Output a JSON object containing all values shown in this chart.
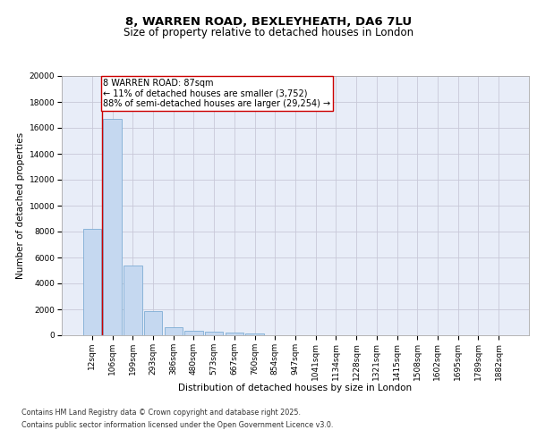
{
  "title_line1": "8, WARREN ROAD, BEXLEYHEATH, DA6 7LU",
  "title_line2": "Size of property relative to detached houses in London",
  "xlabel": "Distribution of detached houses by size in London",
  "ylabel": "Number of detached properties",
  "categories": [
    "12sqm",
    "106sqm",
    "199sqm",
    "293sqm",
    "386sqm",
    "480sqm",
    "573sqm",
    "667sqm",
    "760sqm",
    "854sqm",
    "947sqm",
    "1041sqm",
    "1134sqm",
    "1228sqm",
    "1321sqm",
    "1415sqm",
    "1508sqm",
    "1602sqm",
    "1695sqm",
    "1789sqm",
    "1882sqm"
  ],
  "values": [
    8200,
    16700,
    5350,
    1850,
    650,
    350,
    260,
    200,
    155,
    0,
    0,
    0,
    0,
    0,
    0,
    0,
    0,
    0,
    0,
    0,
    0
  ],
  "bar_color": "#c5d8f0",
  "bar_edgecolor": "#7eadd4",
  "annotation_text": "8 WARREN ROAD: 87sqm\n← 11% of detached houses are smaller (3,752)\n88% of semi-detached houses are larger (29,254) →",
  "vline_color": "#cc0000",
  "annotation_box_edgecolor": "#cc0000",
  "ylim": [
    0,
    20000
  ],
  "yticks": [
    0,
    2000,
    4000,
    6000,
    8000,
    10000,
    12000,
    14000,
    16000,
    18000,
    20000
  ],
  "grid_color": "#c8c8d8",
  "bg_color": "#e8edf8",
  "footer_line1": "Contains HM Land Registry data © Crown copyright and database right 2025.",
  "footer_line2": "Contains public sector information licensed under the Open Government Licence v3.0.",
  "title_fontsize": 9.5,
  "subtitle_fontsize": 8.5,
  "axis_label_fontsize": 7.5,
  "tick_fontsize": 6.5,
  "annotation_fontsize": 7,
  "footer_fontsize": 5.8
}
